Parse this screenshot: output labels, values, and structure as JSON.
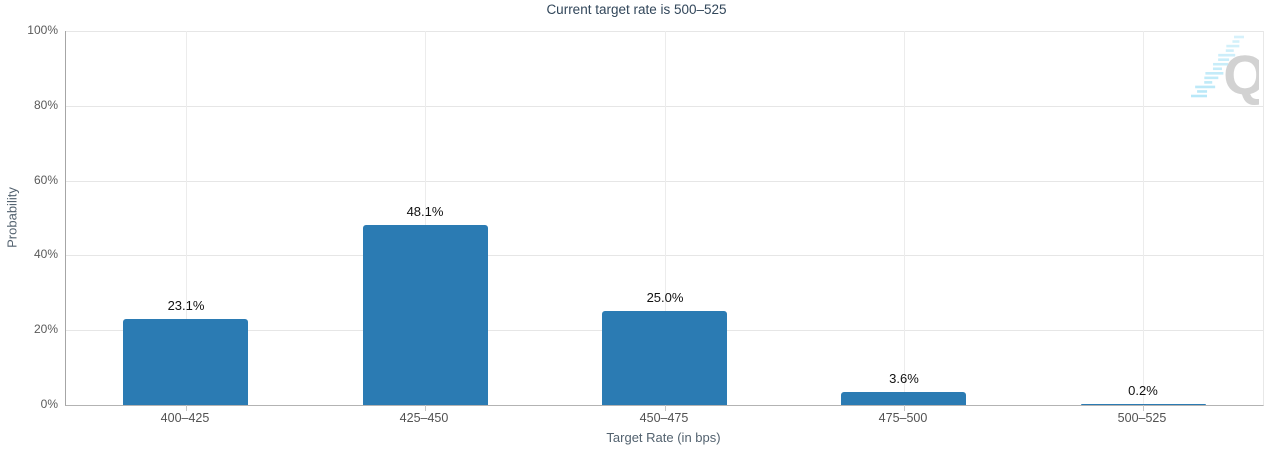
{
  "chart_data": {
    "type": "bar",
    "title": "Current target rate is 500–525",
    "categories": [
      "400–425",
      "425–450",
      "450–475",
      "475–500",
      "500–525"
    ],
    "values": [
      23.1,
      48.1,
      25.0,
      3.6,
      0.2
    ],
    "value_labels": [
      "23.1%",
      "48.1%",
      "25.0%",
      "3.6%",
      "0.2%"
    ],
    "xlabel": "Target Rate (in bps)",
    "ylabel": "Probability",
    "ylim": [
      0,
      100
    ],
    "yticks": [
      0,
      20,
      40,
      60,
      80,
      100
    ],
    "ytick_labels": [
      "0%",
      "20%",
      "40%",
      "60%",
      "80%",
      "100%"
    ],
    "grid": "on",
    "legend": "none",
    "bar_color": "#2b7bb3",
    "title_color": "#31465a"
  },
  "watermark": {
    "letter": "Q",
    "letter_color": "#d2d2d2",
    "dash_color": "#b5e7f8"
  }
}
